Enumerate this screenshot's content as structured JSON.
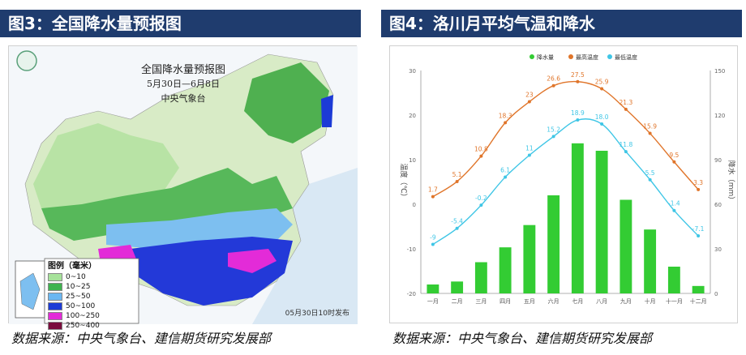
{
  "left": {
    "header": "图3：全国降水量预报图",
    "source": "数据来源：中央气象台、建信期货研究发展部",
    "map": {
      "title": "全国降水量预报图",
      "subtitle": "5月30日—6月8日",
      "org": "中央气象台",
      "issue": "05月30日10时发布",
      "legend_title": "图例（毫米）",
      "legend": [
        {
          "label": "0~10",
          "color": "#a6e29a"
        },
        {
          "label": "10~25",
          "color": "#3fb34f"
        },
        {
          "label": "25~50",
          "color": "#6ab7f2"
        },
        {
          "label": "50~100",
          "color": "#1c3bd6"
        },
        {
          "label": "100~250",
          "color": "#e32bd8"
        },
        {
          "label": "250~400",
          "color": "#7a0d3e"
        }
      ]
    }
  },
  "right": {
    "header": "图4：洛川月平均气温和降水",
    "source": "数据来源：中央气象台、建信期货研究发展部",
    "chart_data": {
      "type": "bar",
      "categories": [
        "一月",
        "二月",
        "三月",
        "四月",
        "五月",
        "六月",
        "七月",
        "八月",
        "九月",
        "十月",
        "十一月",
        "十二月"
      ],
      "series": [
        {
          "name": "降水量",
          "kind": "bar",
          "axis": "right",
          "color": "#33cc33",
          "values": [
            6,
            8,
            21,
            31,
            46,
            66,
            101,
            96,
            63,
            43,
            18,
            5
          ]
        },
        {
          "name": "最高温度",
          "kind": "line",
          "axis": "left",
          "color": "#e0752a",
          "values": [
            1.7,
            5.1,
            10.8,
            18.3,
            23,
            26.6,
            27.5,
            25.9,
            21.3,
            15.9,
            9.5,
            3.3
          ]
        },
        {
          "name": "最低温度",
          "kind": "line",
          "axis": "left",
          "color": "#3fc6e6",
          "values": [
            -9,
            -5.4,
            -0.2,
            6.1,
            11,
            15.2,
            18.9,
            18.0,
            11.8,
            5.5,
            -1.4,
            -7.1
          ]
        }
      ],
      "labels": {
        "最高温度": [
          "1.7",
          "5.1",
          "10.8",
          "18.3",
          "23",
          "26.6",
          "27.5",
          "25.9",
          "21.3",
          "15.9",
          "9.5",
          "3.3"
        ],
        "最低温度": [
          "-9",
          "-5.4",
          "-0.2",
          "6.1",
          "11",
          "15.2",
          "18.9",
          "18.0",
          "11.8",
          "5.5",
          "-1.4",
          "-7.1"
        ]
      },
      "ylabel": "温度（℃）",
      "ylabel_right": "降水（mm）",
      "ylim": [
        -20,
        30
      ],
      "ylim_right": [
        0,
        150
      ],
      "yticks": [
        -20,
        -10,
        0,
        10,
        20,
        30
      ],
      "yticks_right": [
        0,
        30,
        60,
        90,
        120,
        150
      ],
      "legend_position": "top",
      "grid": false
    }
  }
}
